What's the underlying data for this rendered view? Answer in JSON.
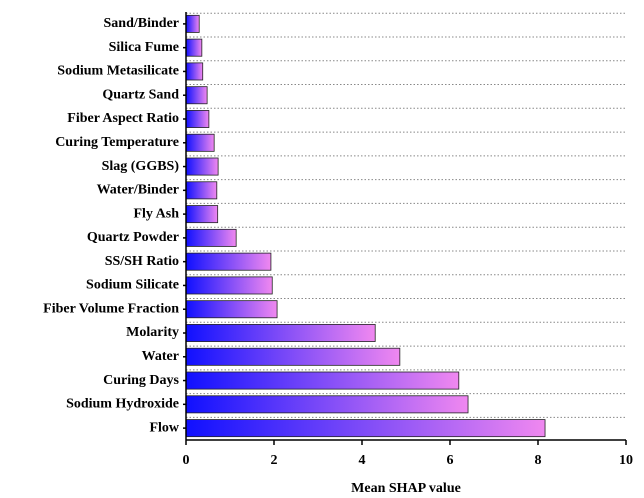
{
  "chart_data": {
    "type": "barh",
    "xlabel": "Mean SHAP value",
    "categories": [
      "Sand/Binder",
      "Silica Fume",
      "Sodium Metasilicate",
      "Quartz Sand",
      "Fiber Aspect Ratio",
      "Curing Temperature",
      "Slag (GGBS)",
      "Water/Binder",
      "Fly Ash",
      "Quartz Powder",
      "SS/SH Ratio",
      "Sodium Silicate",
      "Fiber Volume Fraction",
      "Molarity",
      "Water",
      "Curing Days",
      "Sodium Hydroxide",
      "Flow"
    ],
    "values": [
      0.3,
      0.36,
      0.38,
      0.48,
      0.52,
      0.64,
      0.73,
      0.7,
      0.72,
      1.14,
      1.93,
      1.96,
      2.07,
      4.3,
      4.86,
      6.2,
      6.41,
      8.16
    ],
    "gradient": [
      "#1010ff",
      "#f088f0"
    ],
    "xlim": [
      0,
      10
    ],
    "xticks": [
      0,
      2,
      4,
      6,
      8,
      10
    ],
    "grid": true
  }
}
